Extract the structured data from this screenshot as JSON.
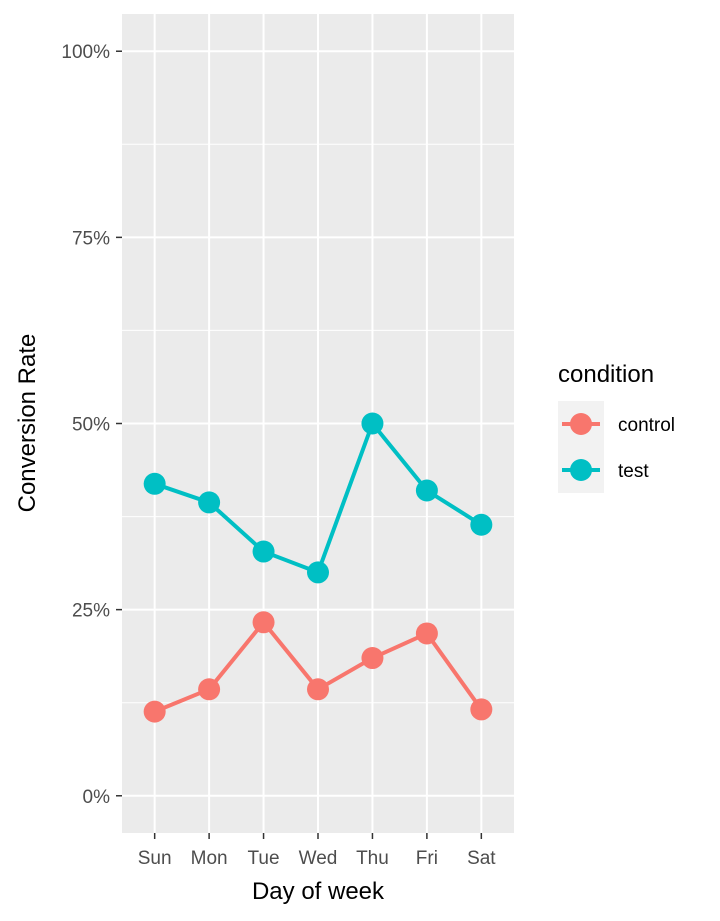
{
  "chart_data": {
    "type": "line",
    "xlabel": "Day of week",
    "ylabel": "Conversion Rate",
    "categories": [
      "Sun",
      "Mon",
      "Tue",
      "Wed",
      "Thu",
      "Fri",
      "Sat"
    ],
    "ylim": [
      -0.05,
      1.05
    ],
    "y_ticks": [
      0,
      0.25,
      0.5,
      0.75,
      1.0
    ],
    "y_tick_labels": [
      "0%",
      "25%",
      "50%",
      "75%",
      "100%"
    ],
    "grid": true,
    "legend": {
      "title": "condition",
      "position": "right"
    },
    "series": [
      {
        "name": "control",
        "color": "#F8766D",
        "values": [
          0.113,
          0.143,
          0.233,
          0.143,
          0.185,
          0.218,
          0.116
        ]
      },
      {
        "name": "test",
        "color": "#00BFC4",
        "values": [
          0.419,
          0.394,
          0.328,
          0.3,
          0.5,
          0.41,
          0.364
        ]
      }
    ]
  }
}
